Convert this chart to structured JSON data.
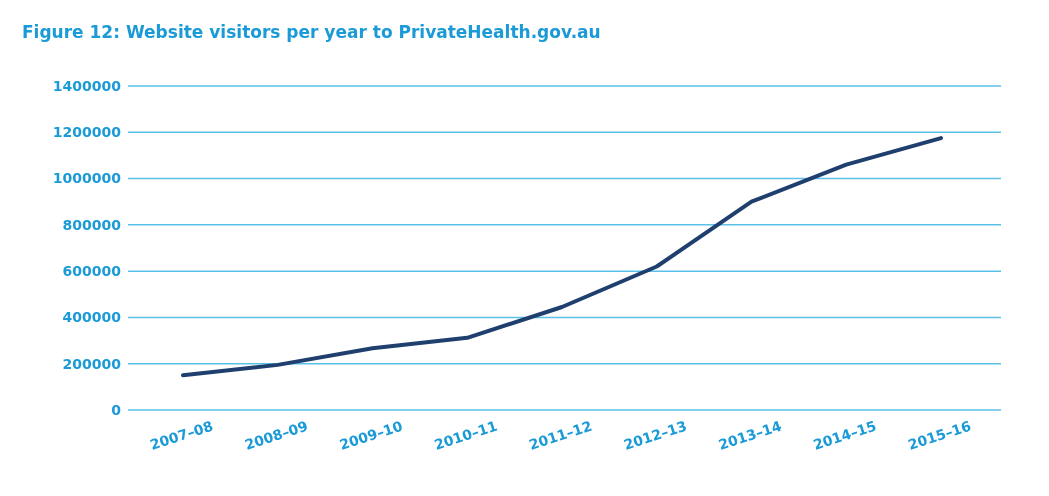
{
  "chart_data": {
    "type": "line",
    "title": "Figure 12:  Website visitors per year to PrivateHealth.gov.au",
    "categories": [
      "2007–08",
      "2008–09",
      "2009–10",
      "2010–11",
      "2011–12",
      "2012–13",
      "2013–14",
      "2014–15",
      "2015–16"
    ],
    "series": [
      {
        "color": "#1f3f6e",
        "values": [
          150000,
          195000,
          267000,
          312000,
          445000,
          620000,
          900000,
          1060000,
          1175000
        ]
      }
    ],
    "ylim": [
      0,
      1400000
    ],
    "yticks": [
      0,
      200000,
      400000,
      600000,
      800000,
      1000000,
      1200000,
      1400000
    ],
    "grid": "y",
    "marker": "none",
    "line_style": "solid"
  }
}
